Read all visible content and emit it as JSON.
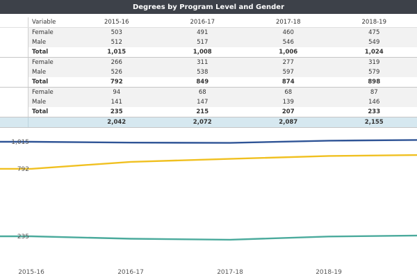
{
  "title": "Degrees by Program Level and Gender",
  "table": {
    "header": [
      "Variable",
      "2015-16",
      "2016-17",
      "2017-18",
      "2018-19"
    ],
    "groups": [
      {
        "rows": [
          {
            "label": "Female",
            "values": [
              "503",
              "491",
              "460",
              "475"
            ]
          },
          {
            "label": "Male",
            "values": [
              "512",
              "517",
              "546",
              "549"
            ]
          },
          {
            "label": "Total",
            "values": [
              "1,015",
              "1,008",
              "1,006",
              "1,024"
            ]
          }
        ]
      },
      {
        "rows": [
          {
            "label": "Female",
            "values": [
              "266",
              "311",
              "277",
              "319"
            ]
          },
          {
            "label": "Male",
            "values": [
              "526",
              "538",
              "597",
              "579"
            ]
          },
          {
            "label": "Total",
            "values": [
              "792",
              "849",
              "874",
              "898"
            ]
          }
        ]
      },
      {
        "rows": [
          {
            "label": "Female",
            "values": [
              "94",
              "68",
              "68",
              "87"
            ]
          },
          {
            "label": "Male",
            "values": [
              "141",
              "147",
              "139",
              "146"
            ]
          },
          {
            "label": "Total",
            "values": [
              "235",
              "215",
              "207",
              "233"
            ]
          }
        ]
      }
    ],
    "grand_total": [
      "2,042",
      "2,072",
      "2,087",
      "2,155"
    ]
  },
  "chart_data": {
    "type": "line",
    "categories": [
      "2015-16",
      "2016-17",
      "2017-18",
      "2018-19"
    ],
    "series": [
      {
        "values": [
          1015,
          1008,
          1006,
          1024
        ],
        "color": "#2f5496"
      },
      {
        "values": [
          792,
          849,
          874,
          898
        ],
        "color": "#f0c020"
      },
      {
        "values": [
          235,
          215,
          207,
          233
        ],
        "color": "#4aaa9c"
      }
    ],
    "y_ticks": [
      {
        "value": 1015,
        "label": "1,015"
      },
      {
        "value": 792,
        "label": "792"
      },
      {
        "value": 235,
        "label": "235"
      }
    ],
    "ylim": [
      160,
      1050
    ],
    "grid": false
  }
}
